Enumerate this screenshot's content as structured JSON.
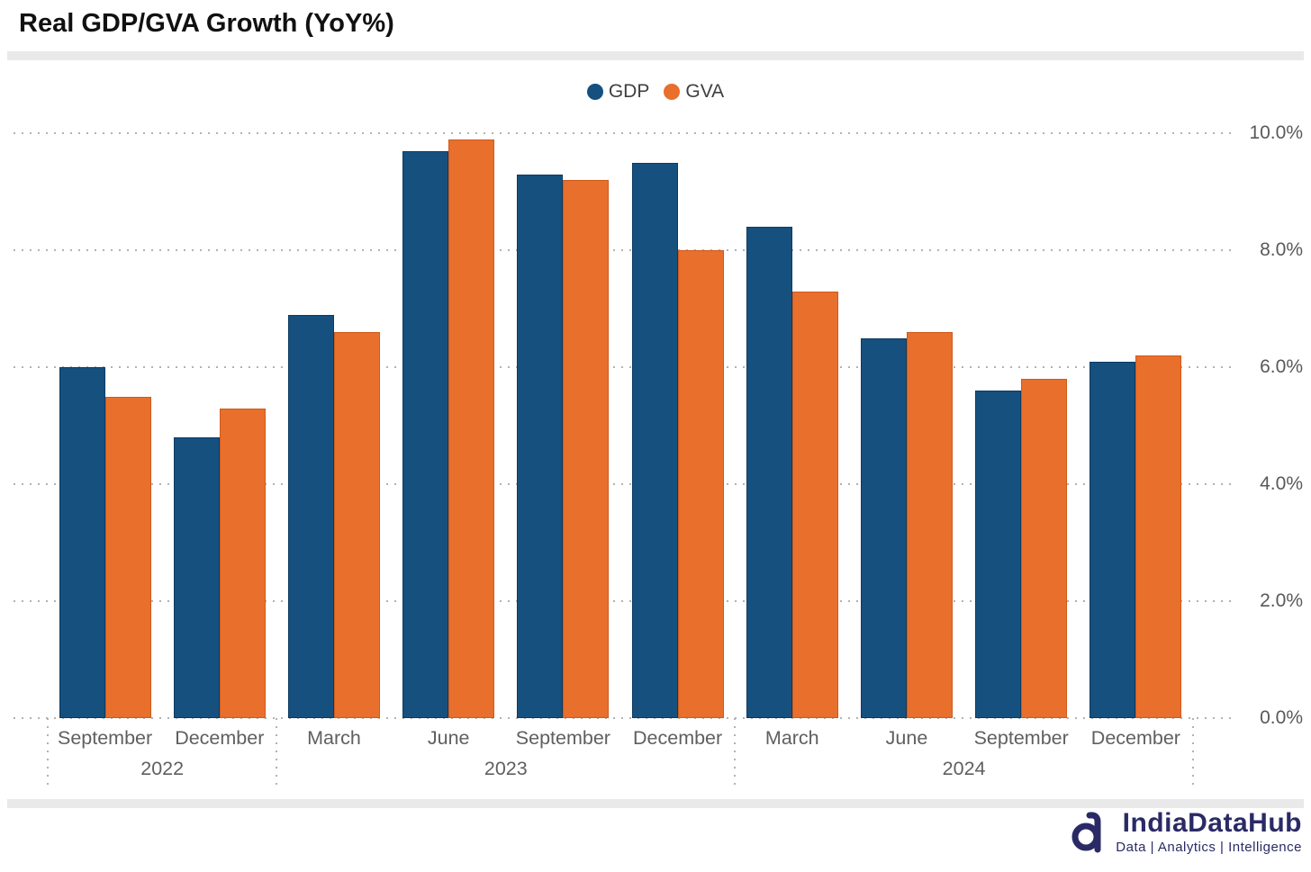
{
  "title": "Real GDP/GVA Growth (YoY%)",
  "legend": {
    "items": [
      {
        "label": "GDP",
        "color": "#16507e"
      },
      {
        "label": "GVA",
        "color": "#e86f2c"
      }
    ]
  },
  "chart_data": {
    "type": "bar",
    "title": "Real GDP/GVA Growth (YoY%)",
    "categories": [
      "September",
      "December",
      "March",
      "June",
      "September",
      "December",
      "March",
      "June",
      "September",
      "December"
    ],
    "year_groups": [
      {
        "label": "2022",
        "span": 2
      },
      {
        "label": "2023",
        "span": 4
      },
      {
        "label": "2024",
        "span": 4
      }
    ],
    "series": [
      {
        "name": "GDP",
        "color": "#16507e",
        "border": "#0d3a61",
        "values": [
          6.0,
          4.8,
          6.9,
          9.7,
          9.3,
          9.5,
          8.4,
          6.5,
          5.6,
          6.1
        ]
      },
      {
        "name": "GVA",
        "color": "#e86f2c",
        "border": "#cf5a1c",
        "values": [
          5.5,
          5.3,
          6.6,
          9.9,
          9.2,
          8.0,
          7.3,
          6.6,
          5.8,
          6.2
        ]
      }
    ],
    "ylim": [
      0,
      10
    ],
    "yticks": [
      {
        "value": 10,
        "label": "10.0%"
      },
      {
        "value": 8,
        "label": "8.0%"
      },
      {
        "value": 6,
        "label": "6.0%"
      },
      {
        "value": 4,
        "label": "4.0%"
      },
      {
        "value": 2,
        "label": "2.0%"
      },
      {
        "value": 0,
        "label": "0.0%"
      }
    ],
    "grid": "dotted horizontal gridlines, dotted vertical year separators below axis",
    "legend_position": "top center",
    "y_axis_side": "right"
  },
  "footer": {
    "brand": "IndiaDataHub",
    "tagline": "Data | Analytics | Intelligence",
    "brand_color": "#2a2a66"
  }
}
